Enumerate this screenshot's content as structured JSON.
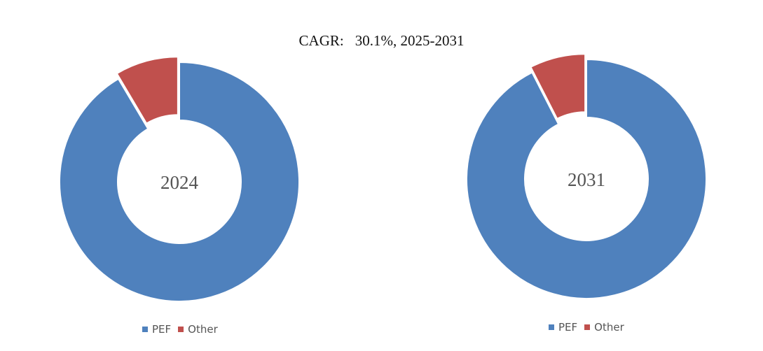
{
  "header": {
    "cagr_label": "CAGR:",
    "cagr_value": "30.1%, 2025-2031"
  },
  "colors": {
    "PEF": "#4F81BD",
    "Other": "#C0504D"
  },
  "chart_data": [
    {
      "type": "pie",
      "style": "donut",
      "center_label": "2024",
      "categories": [
        "PEF",
        "Other"
      ],
      "values": [
        91.5,
        8.5
      ],
      "legend": [
        "PEF",
        "Other"
      ],
      "legend_position": "bottom",
      "exploded": "Other"
    },
    {
      "type": "pie",
      "style": "donut",
      "center_label": "2031",
      "categories": [
        "PEF",
        "Other"
      ],
      "values": [
        92.5,
        7.5
      ],
      "legend": [
        "PEF",
        "Other"
      ],
      "legend_position": "bottom",
      "exploded": "Other"
    }
  ]
}
